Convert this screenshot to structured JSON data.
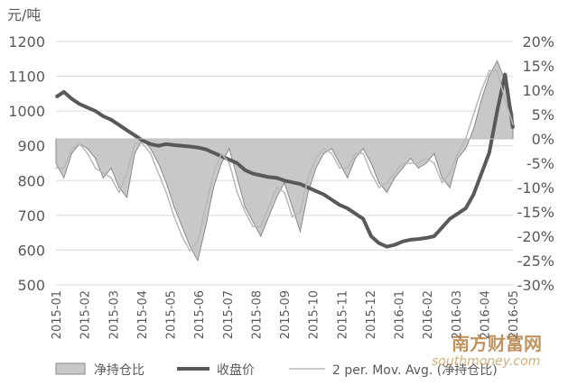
{
  "chart_data": {
    "type": "line",
    "unit_left": "元/吨",
    "xlabels": [
      "2015-01",
      "2015-02",
      "2015-03",
      "2015-04",
      "2015-05",
      "2015-06",
      "2015-07",
      "2015-08",
      "2015-09",
      "2015-10",
      "2015-11",
      "2015-12",
      "2016-01",
      "2016-02",
      "2016-03",
      "2016-04",
      "2016-05"
    ],
    "y_left": {
      "ticks": [
        "1200",
        "1100",
        "1000",
        "900",
        "800",
        "700",
        "600",
        "500"
      ],
      "range": [
        500,
        1200
      ]
    },
    "y_right": {
      "ticks": [
        "20%",
        "15%",
        "10%",
        "5%",
        "0%",
        "-5%",
        "-10%",
        "-15%",
        "-20%",
        "-25%",
        "-30%"
      ],
      "range": [
        -30,
        20
      ]
    },
    "series": [
      {
        "name": "净持仓比",
        "style": "area",
        "axis": "right",
        "color": "#c8c8c8",
        "values": [
          -5,
          -8,
          -3,
          -1,
          -2,
          -4,
          -8,
          -6,
          -10,
          -12,
          -3,
          0,
          -2,
          -5,
          -9,
          -14,
          -18,
          -22,
          -25,
          -18,
          -10,
          -5,
          -2,
          -8,
          -14,
          -17,
          -20,
          -16,
          -12,
          -9,
          -14,
          -19,
          -11,
          -6,
          -3,
          -2,
          -5,
          -8,
          -4,
          -2,
          -5,
          -9,
          -11,
          -8,
          -6,
          -4,
          -6,
          -5,
          -3,
          -8,
          -10,
          -4,
          -2,
          2,
          8,
          13,
          16,
          12,
          5
        ]
      },
      {
        "name": "收盘价",
        "style": "line",
        "axis": "left",
        "color": "#595959",
        "values": [
          1040,
          1055,
          1035,
          1020,
          1010,
          1000,
          985,
          975,
          960,
          945,
          930,
          915,
          905,
          900,
          905,
          902,
          900,
          898,
          895,
          890,
          880,
          870,
          860,
          850,
          830,
          820,
          815,
          810,
          808,
          800,
          795,
          790,
          780,
          770,
          760,
          745,
          730,
          720,
          705,
          690,
          640,
          620,
          610,
          615,
          625,
          630,
          632,
          635,
          640,
          665,
          690,
          705,
          720,
          760,
          820,
          880,
          1000,
          1105,
          950
        ]
      },
      {
        "name": "2 per. Mov. Avg. (净持仓比)",
        "style": "line",
        "axis": "right",
        "color": "#b8b8b8",
        "values": [
          -6,
          -6,
          -2,
          -1,
          -3,
          -6,
          -7,
          -8,
          -11,
          -7,
          -1,
          -1,
          -3,
          -7,
          -11,
          -16,
          -20,
          -23,
          -21,
          -14,
          -7,
          -3,
          -5,
          -11,
          -15,
          -18,
          -18,
          -14,
          -10,
          -11,
          -16,
          -15,
          -8,
          -4,
          -2,
          -3,
          -6,
          -6,
          -3,
          -3,
          -7,
          -10,
          -9,
          -7,
          -5,
          -5,
          -5,
          -4,
          -5,
          -9,
          -7,
          -3,
          0,
          5,
          10,
          14,
          14,
          8,
          3
        ]
      }
    ],
    "legend": [
      "净持仓比",
      "收盘价",
      "2 per. Mov. Avg. (净持仓比)"
    ],
    "legend_position": "bottom",
    "grid": "horizontal"
  },
  "watermark": {
    "name": "南方财富网",
    "url": "southmoney.com"
  }
}
